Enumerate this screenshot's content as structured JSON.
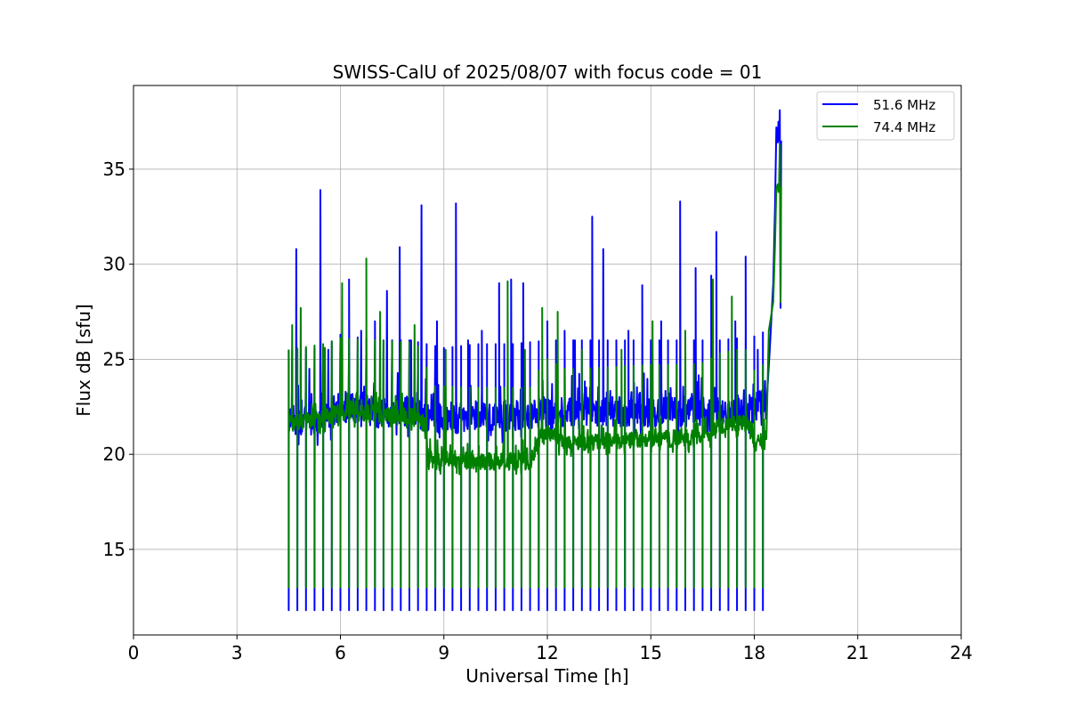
{
  "chart_data": {
    "type": "line",
    "title": "SWISS-CalU of 2025/08/07 with focus code = 01",
    "xlabel": "Universal Time [h]",
    "ylabel": "Flux dB [sfu]",
    "xlim": [
      0,
      24
    ],
    "ylim": [
      10.5,
      39.4
    ],
    "xticks": [
      0,
      3,
      6,
      9,
      12,
      15,
      18,
      21,
      24
    ],
    "yticks": [
      15,
      20,
      25,
      30,
      35
    ],
    "xtick_labels": [
      "0",
      "3",
      "6",
      "9",
      "12",
      "15",
      "18",
      "21",
      "24"
    ],
    "ytick_labels": [
      "15",
      "20",
      "25",
      "30",
      "35"
    ],
    "grid": true,
    "legend_position": "top-right",
    "calibration_times": [
      4.5,
      4.75,
      5.0,
      5.25,
      5.5,
      5.75,
      6.0,
      6.25,
      6.5,
      6.75,
      7.0,
      7.25,
      7.5,
      7.75,
      8.0,
      8.25,
      8.5,
      8.75,
      9.0,
      9.25,
      9.5,
      9.75,
      10.0,
      10.25,
      10.5,
      10.75,
      11.0,
      11.25,
      11.5,
      11.75,
      12.0,
      12.25,
      12.5,
      12.75,
      13.0,
      13.25,
      13.5,
      13.75,
      14.0,
      14.25,
      14.5,
      14.75,
      15.0,
      15.25,
      15.5,
      15.75,
      16.0,
      16.25,
      16.5,
      16.75,
      17.0,
      17.25,
      17.5,
      17.75,
      18.0,
      18.25
    ],
    "series": [
      {
        "name": "51.6 MHz",
        "color": "#0000ff",
        "calibration_low": 11.8,
        "baseline": [
          [
            4.5,
            21.5
          ],
          [
            5.5,
            21.6
          ],
          [
            6.0,
            22.3
          ],
          [
            7.0,
            22.0
          ],
          [
            8.0,
            22.0
          ],
          [
            8.5,
            21.8
          ],
          [
            9.0,
            21.6
          ],
          [
            10.0,
            21.8
          ],
          [
            11.0,
            21.8
          ],
          [
            12.0,
            22.0
          ],
          [
            13.0,
            22.0
          ],
          [
            14.0,
            22.0
          ],
          [
            15.0,
            22.0
          ],
          [
            16.0,
            22.0
          ],
          [
            17.0,
            22.0
          ],
          [
            18.0,
            22.2
          ],
          [
            18.35,
            22.5
          ]
        ],
        "spikes": [
          [
            4.6,
            25.5
          ],
          [
            4.72,
            30.8
          ],
          [
            5.1,
            24.5
          ],
          [
            5.42,
            33.9
          ],
          [
            5.65,
            25.5
          ],
          [
            6.25,
            29.2
          ],
          [
            6.6,
            26.5
          ],
          [
            7.0,
            27.0
          ],
          [
            7.35,
            28.6
          ],
          [
            7.72,
            30.9
          ],
          [
            8.05,
            26.0
          ],
          [
            8.35,
            33.1
          ],
          [
            8.8,
            27.0
          ],
          [
            9.35,
            33.2
          ],
          [
            9.7,
            26.0
          ],
          [
            10.1,
            26.5
          ],
          [
            10.6,
            29.0
          ],
          [
            10.95,
            29.2
          ],
          [
            11.3,
            29.0
          ],
          [
            12.0,
            27.0
          ],
          [
            12.5,
            26.5
          ],
          [
            12.8,
            26.0
          ],
          [
            13.3,
            32.5
          ],
          [
            13.62,
            30.8
          ],
          [
            14.0,
            26.0
          ],
          [
            14.35,
            26.5
          ],
          [
            14.75,
            28.9
          ],
          [
            15.3,
            27.0
          ],
          [
            15.85,
            33.3
          ],
          [
            16.3,
            29.8
          ],
          [
            16.75,
            29.4
          ],
          [
            16.9,
            31.7
          ],
          [
            17.45,
            27.0
          ],
          [
            17.75,
            30.4
          ],
          [
            18.1,
            25.5
          ]
        ],
        "end_segment": [
          [
            18.35,
            22.5
          ],
          [
            18.45,
            25.5
          ],
          [
            18.55,
            29.0
          ],
          [
            18.6,
            33.0
          ],
          [
            18.64,
            37.2
          ],
          [
            18.68,
            36.4
          ],
          [
            18.7,
            37.5
          ],
          [
            18.72,
            36.5
          ],
          [
            18.74,
            38.1
          ],
          [
            18.76,
            27.7
          ],
          [
            18.78,
            36.5
          ]
        ]
      },
      {
        "name": "74.4 MHz",
        "color": "#008000",
        "calibration_low": 13.0,
        "baseline": [
          [
            4.5,
            21.5
          ],
          [
            5.5,
            21.8
          ],
          [
            6.0,
            22.1
          ],
          [
            7.0,
            22.0
          ],
          [
            8.0,
            21.9
          ],
          [
            8.45,
            21.5
          ],
          [
            8.55,
            19.6
          ],
          [
            10.0,
            19.5
          ],
          [
            11.5,
            19.5
          ],
          [
            11.75,
            20.4
          ],
          [
            12.0,
            21.0
          ],
          [
            12.5,
            20.5
          ],
          [
            13.0,
            20.5
          ],
          [
            14.0,
            20.6
          ],
          [
            15.0,
            20.7
          ],
          [
            16.0,
            20.7
          ],
          [
            16.5,
            20.8
          ],
          [
            17.0,
            21.3
          ],
          [
            17.5,
            21.5
          ],
          [
            17.9,
            21.5
          ],
          [
            18.0,
            20.4
          ],
          [
            18.35,
            20.8
          ]
        ],
        "spikes": [
          [
            4.6,
            26.8
          ],
          [
            4.85,
            27.7
          ],
          [
            5.55,
            25.6
          ],
          [
            6.05,
            29.0
          ],
          [
            6.75,
            30.3
          ],
          [
            7.15,
            27.5
          ],
          [
            8.15,
            26.8
          ],
          [
            9.05,
            25.5
          ],
          [
            10.85,
            29.1
          ],
          [
            11.35,
            25.5
          ],
          [
            11.85,
            27.7
          ],
          [
            12.3,
            27.5
          ],
          [
            13.0,
            25.5
          ],
          [
            14.15,
            25.5
          ],
          [
            15.05,
            27.0
          ],
          [
            16.0,
            26.5
          ],
          [
            16.8,
            29.2
          ],
          [
            17.35,
            28.3
          ]
        ],
        "end_segment": [
          [
            18.35,
            20.8
          ],
          [
            18.42,
            26.5
          ],
          [
            18.55,
            28.0
          ],
          [
            18.6,
            31.0
          ],
          [
            18.64,
            34.0
          ],
          [
            18.68,
            34.2
          ],
          [
            18.7,
            33.8
          ],
          [
            18.72,
            34.3
          ],
          [
            18.74,
            36.3
          ],
          [
            18.76,
            28.0
          ],
          [
            18.78,
            34.1
          ]
        ]
      }
    ]
  }
}
